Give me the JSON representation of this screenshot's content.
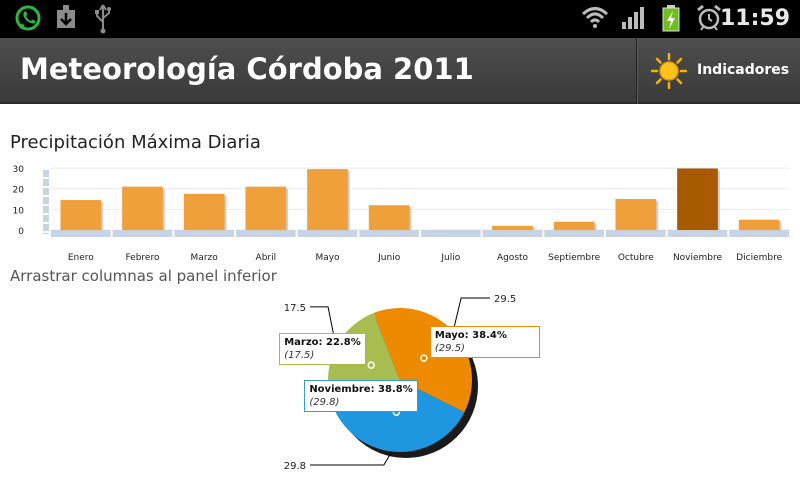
{
  "status_bar": {
    "time": "11:59",
    "icons": [
      "whatsapp-icon",
      "download-icon",
      "usb-icon",
      "wifi-icon",
      "signal-icon",
      "battery-charging-icon",
      "alarm-icon"
    ]
  },
  "action_bar": {
    "title": "Meteorología Córdoba 2011",
    "indicators_label": "Indicadores",
    "indicators_icon": "sun-icon"
  },
  "chart": {
    "title": "Precipitación Máxima Diaria",
    "drag_hint": "Arrastrar columnas al panel inferior"
  },
  "chart_data": [
    {
      "type": "bar",
      "categories": [
        "Enero",
        "Febrero",
        "Marzo",
        "Abril",
        "Mayo",
        "Junio",
        "Julio",
        "Agosto",
        "Septiembre",
        "Octubre",
        "Noviembre",
        "Diciembre"
      ],
      "values": [
        14.5,
        21,
        17.5,
        21,
        29.5,
        12,
        0,
        2,
        4,
        15,
        29.8,
        5
      ],
      "y_ticks": [
        "0",
        "10",
        "20",
        "30"
      ],
      "ylim": [
        0,
        31
      ],
      "highlighted": "Noviembre",
      "colors": {
        "bar": "#f0a03a",
        "highlight": "#a85a00"
      }
    },
    {
      "type": "pie",
      "slices": [
        {
          "label": "Mayo",
          "percent": "38.4%",
          "value": "29.5",
          "color": "#ee8a00",
          "border": "#ee8a00"
        },
        {
          "label": "Noviembre",
          "percent": "38.8%",
          "value": "29.8",
          "color": "#1e96e0",
          "border": "#3b9dc7"
        },
        {
          "label": "Marzo",
          "percent": "22.8%",
          "value": "17.5",
          "color": "#a8bd50",
          "border": "#b2b34a"
        }
      ]
    }
  ]
}
